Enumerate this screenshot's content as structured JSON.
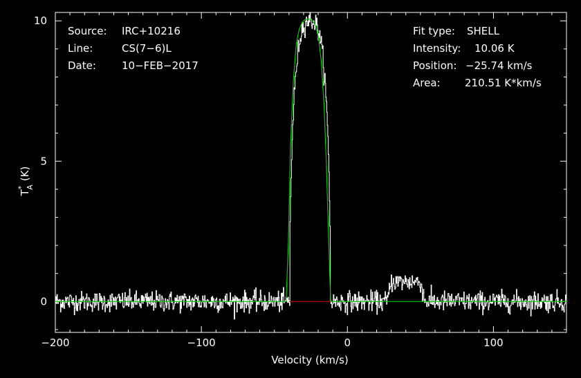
{
  "info_left": [
    {
      "key": "Source:",
      "value": "IRC+10216"
    },
    {
      "key": "Line:",
      "value": "CS(7−6)L"
    },
    {
      "key": "Date:",
      "value": "10−FEB−2017"
    }
  ],
  "info_right": [
    {
      "key": "Fit type:",
      "value": "SHELL"
    },
    {
      "key": "Intensity:",
      "value": "10.06 K"
    },
    {
      "key": "Position:",
      "value": "−25.74 km/s"
    },
    {
      "key": "Area:",
      "value": "210.51 K*km/s"
    }
  ],
  "colors": {
    "background": "#000000",
    "data": "#ffffff",
    "fit": "#00c800",
    "baseline": "#c80000",
    "axes": "#ffffff"
  },
  "chart_data": {
    "type": "line",
    "xlabel": "Velocity (km/s)",
    "ylabel": "T",
    "ylabel_sup": "*",
    "ylabel_sub": "A",
    "ylabel_unit": "(K)",
    "xlim": [
      -200,
      150
    ],
    "ylim": [
      -1.1,
      10.3
    ],
    "x_ticks": [
      -200,
      -100,
      0,
      100
    ],
    "x_tick_labels": [
      "−200",
      "−100",
      "0",
      "100"
    ],
    "y_ticks": [
      0,
      5,
      10
    ],
    "y_tick_labels": [
      "0",
      "5",
      "10"
    ],
    "grid": false,
    "series": [
      {
        "role": "spectrum",
        "style": "histogram",
        "noise_rms": 0.2,
        "features": [
          {
            "x_range": [
              -40,
              -12
            ],
            "peak": 10.0,
            "center": -25.7,
            "shape": "shell"
          },
          {
            "x_range": [
              27,
              53
            ],
            "peak": 0.7,
            "center": 38,
            "shape": "flat"
          }
        ]
      },
      {
        "role": "fit",
        "fit_type": "SHELL",
        "x": [
          -200,
          -42,
          -40.5,
          -39,
          -37,
          -35,
          -33,
          -31,
          -29,
          -27,
          -25.7,
          -24,
          -22,
          -20,
          -18,
          -16,
          -14.5,
          -13,
          -11.5,
          150
        ],
        "y": [
          0,
          0,
          2.0,
          5.5,
          7.9,
          9.2,
          9.7,
          9.95,
          10.05,
          10.06,
          10.06,
          10.0,
          9.85,
          9.45,
          8.6,
          7.0,
          5.0,
          2.5,
          0,
          0
        ]
      },
      {
        "role": "baseline-window",
        "x": [
          -40,
          -12
        ],
        "y": [
          0,
          0
        ]
      }
    ]
  }
}
